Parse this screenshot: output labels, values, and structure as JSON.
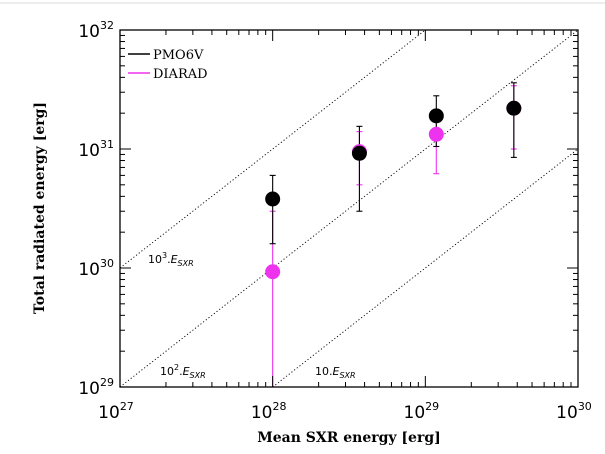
{
  "chart_data": {
    "type": "scatter",
    "title": "",
    "xlabel": "Mean SXR energy [erg]",
    "ylabel": "Total radiated energy [erg]",
    "xscale": "log",
    "yscale": "log",
    "xlim": [
      1e+27,
      1e+30
    ],
    "ylim": [
      1e+29,
      1e+32
    ],
    "x_ticks": [
      {
        "value": 1e+27,
        "base": "10",
        "exp": "27"
      },
      {
        "value": 1e+28,
        "base": "10",
        "exp": "28"
      },
      {
        "value": 1e+29,
        "base": "10",
        "exp": "29"
      },
      {
        "value": 1e+30,
        "base": "10",
        "exp": "30"
      }
    ],
    "y_ticks": [
      {
        "value": 1e+29,
        "base": "10",
        "exp": "29"
      },
      {
        "value": 1e+30,
        "base": "10",
        "exp": "30"
      },
      {
        "value": 1e+31,
        "base": "10",
        "exp": "31"
      },
      {
        "value": 1e+32,
        "base": "10",
        "exp": "32"
      }
    ],
    "grid": false,
    "legend_position": "top-left",
    "reference_lines": [
      {
        "factor": 1000,
        "prefix": "10",
        "sup": "3",
        "suffix": ".E",
        "sub": "SXR"
      },
      {
        "factor": 100,
        "prefix": "10",
        "sup": "2",
        "suffix": ".E",
        "sub": "SXR"
      },
      {
        "factor": 10,
        "prefix": "10",
        "sup": "",
        "suffix": ".E",
        "sub": "SXR"
      }
    ],
    "series": [
      {
        "name": "PMO6V",
        "color": "#000000",
        "points": [
          {
            "x": 1e+28,
            "y": 3.8e+30,
            "ylow": 1.6e+30,
            "yhigh": 6e+30
          },
          {
            "x": 3.7e+28,
            "y": 9.2e+30,
            "ylow": 3e+30,
            "yhigh": 1.55e+31
          },
          {
            "x": 1.18e+29,
            "y": 1.9e+31,
            "ylow": 1.05e+31,
            "yhigh": 2.8e+31
          },
          {
            "x": 3.8e+29,
            "y": 2.2e+31,
            "ylow": 8.5e+30,
            "yhigh": 3.6e+31
          }
        ]
      },
      {
        "name": "DIARAD",
        "color": "#ee33ee",
        "points": [
          {
            "x": 1e+28,
            "y": 9.3e+29,
            "ylow": 1e+29,
            "yhigh": 3e+30
          },
          {
            "x": 3.7e+28,
            "y": 9.5e+30,
            "ylow": 5e+30,
            "yhigh": 1.4e+31
          },
          {
            "x": 1.18e+29,
            "y": 1.33e+31,
            "ylow": 6.2e+30,
            "yhigh": 2.05e+31
          },
          {
            "x": 3.8e+29,
            "y": 2.2e+31,
            "ylow": 1e+31,
            "yhigh": 3.4e+31
          }
        ]
      }
    ]
  }
}
